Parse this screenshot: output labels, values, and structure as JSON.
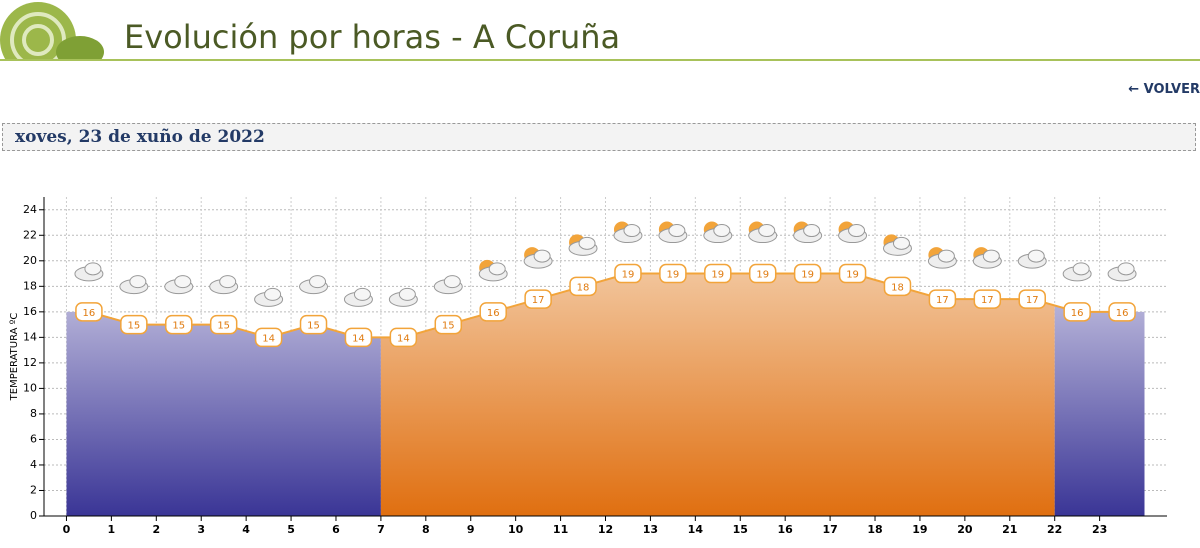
{
  "header": {
    "title": "Evolución por horas - A Coruña",
    "back": "VOLVER"
  },
  "date": "xoves, 23 de xuño de 2022",
  "chart_data": {
    "type": "area",
    "ylabel": "TEMPERATURA ºC",
    "x": [
      0.5,
      1.5,
      2.5,
      3.5,
      4.5,
      5.5,
      6.5,
      7.5,
      8.5,
      9.5,
      10.5,
      11.5,
      12.5,
      13.5,
      14.5,
      15.5,
      16.5,
      17.5,
      18.5,
      19.5,
      20.5,
      21.5,
      22.5,
      23.5
    ],
    "values": [
      16,
      15,
      15,
      15,
      14,
      15,
      14,
      14,
      15,
      16,
      17,
      18,
      19,
      19,
      19,
      19,
      19,
      19,
      18,
      17,
      17,
      17,
      16,
      16
    ],
    "xlim": [
      -0.5,
      24.5
    ],
    "xticks": [
      0,
      1,
      2,
      3,
      4,
      5,
      6,
      7,
      8,
      9,
      10,
      11,
      12,
      13,
      14,
      15,
      16,
      17,
      18,
      19,
      20,
      21,
      22,
      23
    ],
    "ylim": [
      0,
      25
    ],
    "yticks": [
      0,
      2,
      4,
      6,
      8,
      10,
      12,
      14,
      16,
      18,
      20,
      22,
      24
    ],
    "daylight": [
      7,
      22
    ],
    "line_color": "#f2a43a",
    "day_color": "#e06f10",
    "night_color": "#3a3596",
    "grid": true
  }
}
